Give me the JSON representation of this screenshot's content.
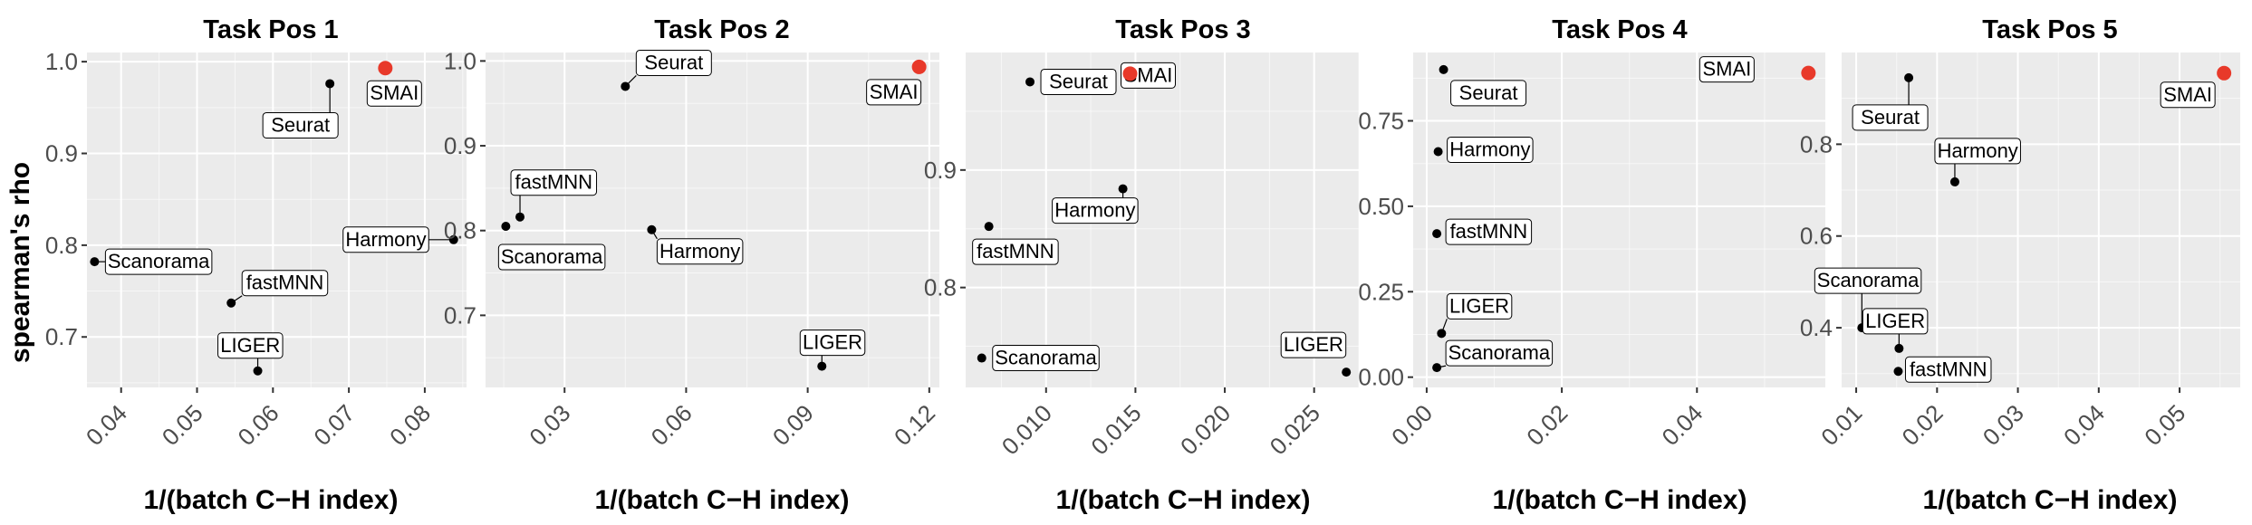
{
  "highlight_color": "#e8392a",
  "point_color": "#000000",
  "panel_bg": "#ebebeb",
  "chart_data": [
    {
      "type": "scatter",
      "title": "Task Pos 1",
      "xlabel": "1/(batch C−H index)",
      "ylabel": "spearman's rho",
      "xlim": [
        0.0355,
        0.0855
      ],
      "ylim": [
        0.645,
        1.01
      ],
      "xticks": [
        0.04,
        0.05,
        0.06,
        0.07,
        0.08
      ],
      "xtick_labels": [
        "0.04",
        "0.05",
        "0.06",
        "0.07",
        "0.08"
      ],
      "yticks": [
        0.7,
        0.8,
        0.9,
        1.0
      ],
      "ytick_labels": [
        "0.7",
        "0.8",
        "0.9",
        "1.0"
      ],
      "points": [
        {
          "name": "SMAI",
          "x": 0.0748,
          "y": 0.993,
          "highlight": true
        },
        {
          "name": "Seurat",
          "x": 0.0675,
          "y": 0.976
        },
        {
          "name": "Scanorama",
          "x": 0.0365,
          "y": 0.782
        },
        {
          "name": "Harmony",
          "x": 0.0838,
          "y": 0.806
        },
        {
          "name": "fastMNN",
          "x": 0.0545,
          "y": 0.737
        },
        {
          "name": "LIGER",
          "x": 0.058,
          "y": 0.663
        }
      ]
    },
    {
      "type": "scatter",
      "title": "Task Pos 2",
      "xlabel": "1/(batch C−H index)",
      "ylabel": "",
      "xlim": [
        0.0105,
        0.1225
      ],
      "ylim": [
        0.615,
        1.01
      ],
      "xticks": [
        0.03,
        0.06,
        0.09,
        0.12
      ],
      "xtick_labels": [
        "0.03",
        "0.06",
        "0.09",
        "0.12"
      ],
      "yticks": [
        0.7,
        0.8,
        0.9,
        1.0
      ],
      "ytick_labels": [
        "0.7",
        "0.8",
        "0.9",
        "1.0"
      ],
      "points": [
        {
          "name": "SMAI",
          "x": 0.1175,
          "y": 0.993,
          "highlight": true
        },
        {
          "name": "Seurat",
          "x": 0.045,
          "y": 0.97
        },
        {
          "name": "fastMNN",
          "x": 0.019,
          "y": 0.816
        },
        {
          "name": "Scanorama",
          "x": 0.0155,
          "y": 0.805
        },
        {
          "name": "Harmony",
          "x": 0.0515,
          "y": 0.801
        },
        {
          "name": "LIGER",
          "x": 0.0935,
          "y": 0.64
        }
      ]
    },
    {
      "type": "scatter",
      "title": "Task Pos 3",
      "xlabel": "1/(batch C−H index)",
      "ylabel": "",
      "xlim": [
        0.0055,
        0.0275
      ],
      "ylim": [
        0.715,
        1.0
      ],
      "xticks": [
        0.01,
        0.015,
        0.02,
        0.025
      ],
      "xtick_labels": [
        "0.010",
        "0.015",
        "0.020",
        "0.025"
      ],
      "yticks": [
        0.8,
        0.9
      ],
      "ytick_labels": [
        "0.8",
        "0.9"
      ],
      "points": [
        {
          "name": "Seurat",
          "x": 0.0091,
          "y": 0.975
        },
        {
          "name": "SMAI",
          "x": 0.0147,
          "y": 0.982,
          "highlight": true
        },
        {
          "name": "Harmony",
          "x": 0.0143,
          "y": 0.884
        },
        {
          "name": "fastMNN",
          "x": 0.0068,
          "y": 0.852
        },
        {
          "name": "Scanorama",
          "x": 0.0064,
          "y": 0.74
        },
        {
          "name": "LIGER",
          "x": 0.0268,
          "y": 0.728
        }
      ]
    },
    {
      "type": "scatter",
      "title": "Task Pos 4",
      "xlabel": "1/(batch C−H index)",
      "ylabel": "",
      "xlim": [
        -0.002,
        0.059
      ],
      "ylim": [
        -0.03,
        0.95
      ],
      "xticks": [
        0.0,
        0.02,
        0.04
      ],
      "xtick_labels": [
        "0.00",
        "0.02",
        "0.04"
      ],
      "yticks": [
        0.0,
        0.25,
        0.5,
        0.75
      ],
      "ytick_labels": [
        "0.00",
        "0.25",
        "0.50",
        "0.75"
      ],
      "points": [
        {
          "name": "Seurat",
          "x": 0.0025,
          "y": 0.9
        },
        {
          "name": "SMAI",
          "x": 0.0565,
          "y": 0.89,
          "highlight": true
        },
        {
          "name": "Harmony",
          "x": 0.0017,
          "y": 0.66
        },
        {
          "name": "fastMNN",
          "x": 0.0015,
          "y": 0.42
        },
        {
          "name": "LIGER",
          "x": 0.0022,
          "y": 0.128
        },
        {
          "name": "Scanorama",
          "x": 0.0015,
          "y": 0.028
        }
      ]
    },
    {
      "type": "scatter",
      "title": "Task Pos 5",
      "xlabel": "1/(batch C−H index)",
      "ylabel": "",
      "xlim": [
        0.0082,
        0.0575
      ],
      "ylim": [
        0.27,
        1.0
      ],
      "xticks": [
        0.01,
        0.02,
        0.03,
        0.04,
        0.05
      ],
      "xtick_labels": [
        "0.01",
        "0.02",
        "0.03",
        "0.04",
        "0.05"
      ],
      "yticks": [
        0.4,
        0.6,
        0.8
      ],
      "ytick_labels": [
        "0.4",
        "0.6",
        "0.8"
      ],
      "points": [
        {
          "name": "Seurat",
          "x": 0.0165,
          "y": 0.945
        },
        {
          "name": "SMAI",
          "x": 0.0555,
          "y": 0.955,
          "highlight": true
        },
        {
          "name": "Harmony",
          "x": 0.0222,
          "y": 0.718
        },
        {
          "name": "Scanorama",
          "x": 0.0107,
          "y": 0.4
        },
        {
          "name": "LIGER",
          "x": 0.0153,
          "y": 0.355
        },
        {
          "name": "fastMNN",
          "x": 0.0152,
          "y": 0.305
        }
      ]
    }
  ]
}
